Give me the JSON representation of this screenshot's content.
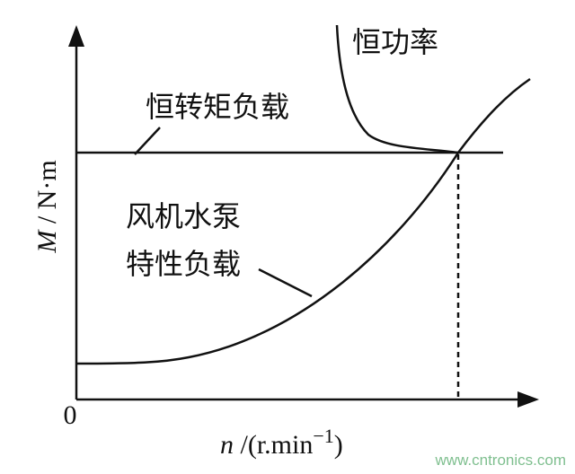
{
  "y_axis_label": {
    "symbol": "M",
    "unit": " / N·m"
  },
  "x_axis_label": {
    "symbol": "n",
    "unit": " /(r.min",
    "exponent": "−1",
    "close": ")"
  },
  "origin": "0",
  "curves": [
    {
      "label": "恒转矩负载"
    },
    {
      "label": [
        "风机水泵",
        "特性负载"
      ]
    },
    {
      "label": "恒功率"
    }
  ],
  "watermark": "www.cntronics.com"
}
